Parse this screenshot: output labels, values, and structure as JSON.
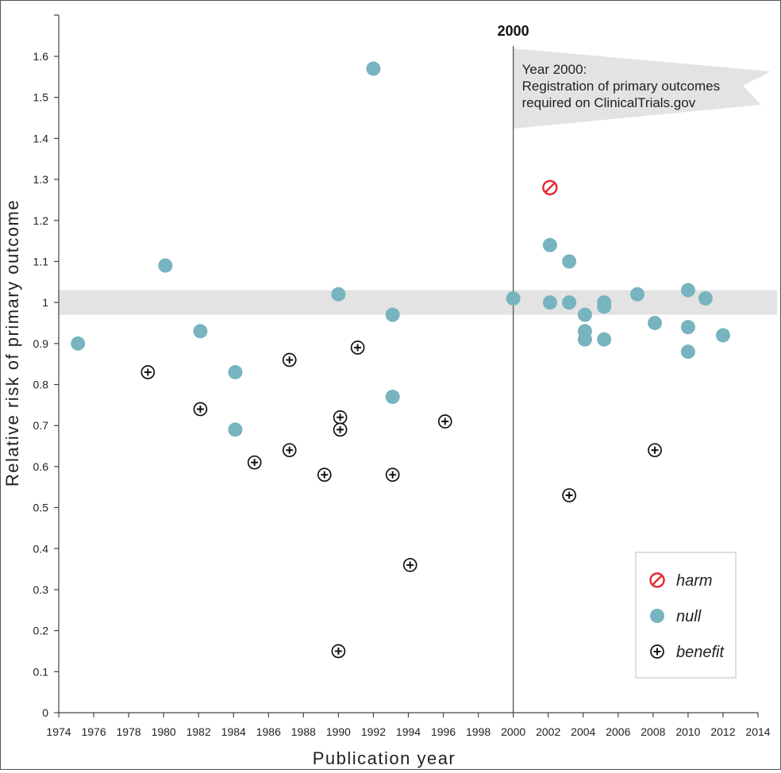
{
  "chart_data": {
    "type": "scatter",
    "xlabel": "Publication year",
    "ylabel": "Relative risk of primary outcome",
    "xlim": [
      1974,
      2014
    ],
    "ylim": [
      0,
      1.7
    ],
    "xticks": [
      1974,
      1976,
      1978,
      1980,
      1982,
      1984,
      1986,
      1988,
      1990,
      1992,
      1994,
      1996,
      1998,
      2000,
      2002,
      2004,
      2006,
      2008,
      2010,
      2012,
      2014
    ],
    "yticks": [
      0,
      0.1,
      0.2,
      0.3,
      0.4,
      0.5,
      0.6,
      0.7,
      0.8,
      0.9,
      1,
      1.1,
      1.2,
      1.3,
      1.4,
      1.5,
      1.6
    ],
    "ytick_labels": [
      "0",
      "0.1",
      "0.2",
      "0.3",
      "0.4",
      "0.5",
      "0.6",
      "0.7",
      "0.8",
      "0.9",
      "1",
      "1.1",
      "1.2",
      "1.3",
      "1.4",
      "1.5",
      "1.6"
    ],
    "grid": false,
    "null_band": [
      0.97,
      1.03
    ],
    "vertical_line": {
      "x": 2000,
      "label": "2000"
    },
    "annotation": {
      "lines": [
        "Year 2000:",
        "Registration of primary outcomes",
        "required on ClinicalTrials.gov"
      ]
    },
    "legend": {
      "position": "bottom-right",
      "entries": [
        {
          "name": "harm",
          "marker": "harm"
        },
        {
          "name": "null",
          "marker": "null"
        },
        {
          "name": "benefit",
          "marker": "benefit"
        }
      ]
    },
    "colors": {
      "harm": "#e8262d",
      "null": "#77b4bf",
      "benefit": "#111111",
      "band": "#e3e3e3",
      "annotation_fill": "#e3e3e3"
    },
    "series": [
      {
        "name": "harm",
        "points": [
          {
            "x": 2002.1,
            "y": 1.28
          }
        ]
      },
      {
        "name": "null",
        "points": [
          {
            "x": 1975.1,
            "y": 0.9
          },
          {
            "x": 1980.1,
            "y": 1.09
          },
          {
            "x": 1982.1,
            "y": 0.93
          },
          {
            "x": 1984.1,
            "y": 0.83
          },
          {
            "x": 1984.1,
            "y": 0.69
          },
          {
            "x": 1990.0,
            "y": 1.02
          },
          {
            "x": 1992.0,
            "y": 1.57
          },
          {
            "x": 1993.1,
            "y": 0.97
          },
          {
            "x": 1993.1,
            "y": 0.77
          },
          {
            "x": 2000.0,
            "y": 1.01
          },
          {
            "x": 2002.1,
            "y": 1.14
          },
          {
            "x": 2002.1,
            "y": 1.0
          },
          {
            "x": 2003.2,
            "y": 1.1
          },
          {
            "x": 2003.2,
            "y": 1.0
          },
          {
            "x": 2004.1,
            "y": 0.97
          },
          {
            "x": 2004.1,
            "y": 0.93
          },
          {
            "x": 2004.1,
            "y": 0.91
          },
          {
            "x": 2005.2,
            "y": 1.0
          },
          {
            "x": 2005.2,
            "y": 0.99
          },
          {
            "x": 2005.2,
            "y": 0.91
          },
          {
            "x": 2007.1,
            "y": 1.02
          },
          {
            "x": 2008.1,
            "y": 0.95
          },
          {
            "x": 2010.0,
            "y": 1.03
          },
          {
            "x": 2010.0,
            "y": 0.94
          },
          {
            "x": 2010.0,
            "y": 0.88
          },
          {
            "x": 2011.0,
            "y": 1.01
          },
          {
            "x": 2012.0,
            "y": 0.92
          }
        ]
      },
      {
        "name": "benefit",
        "points": [
          {
            "x": 1979.1,
            "y": 0.83
          },
          {
            "x": 1982.1,
            "y": 0.74
          },
          {
            "x": 1985.2,
            "y": 0.61
          },
          {
            "x": 1987.2,
            "y": 0.86
          },
          {
            "x": 1987.2,
            "y": 0.64
          },
          {
            "x": 1989.2,
            "y": 0.58
          },
          {
            "x": 1990.1,
            "y": 0.72
          },
          {
            "x": 1990.1,
            "y": 0.69
          },
          {
            "x": 1990.0,
            "y": 0.15
          },
          {
            "x": 1991.1,
            "y": 0.89
          },
          {
            "x": 1993.1,
            "y": 0.58
          },
          {
            "x": 1994.1,
            "y": 0.36
          },
          {
            "x": 1996.1,
            "y": 0.71
          },
          {
            "x": 2003.2,
            "y": 0.53
          },
          {
            "x": 2008.1,
            "y": 0.64
          }
        ]
      }
    ]
  }
}
